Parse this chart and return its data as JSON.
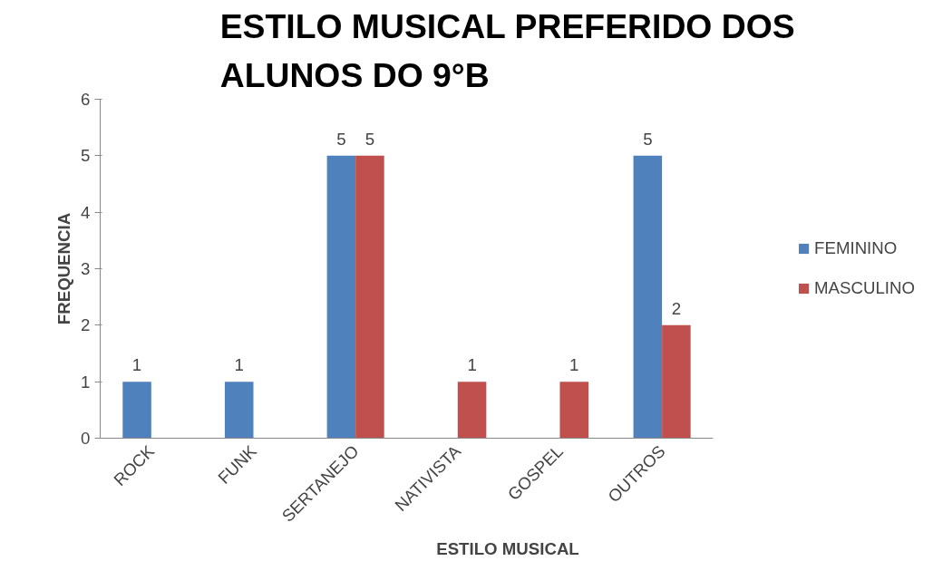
{
  "chart_data": {
    "type": "bar",
    "title": "ESTILO MUSICAL PREFERIDO DOS ALUNOS DO 9°B",
    "xlabel": "ESTILO MUSICAL",
    "ylabel": "FREQUENCIA",
    "categories": [
      "ROCK",
      "FUNK",
      "SERTANEJO",
      "NATIVISTA",
      "GOSPEL",
      "OUTROS"
    ],
    "series": [
      {
        "name": "FEMININO",
        "color": "#4f81bd",
        "values": [
          1,
          1,
          5,
          null,
          null,
          5
        ]
      },
      {
        "name": "MASCULINO",
        "color": "#c0504d",
        "values": [
          null,
          null,
          5,
          1,
          1,
          2
        ]
      }
    ],
    "ylim": [
      0,
      6
    ],
    "yticks": [
      0,
      1,
      2,
      3,
      4,
      5,
      6
    ],
    "grid": false,
    "legend": "right",
    "data_labels": true
  }
}
